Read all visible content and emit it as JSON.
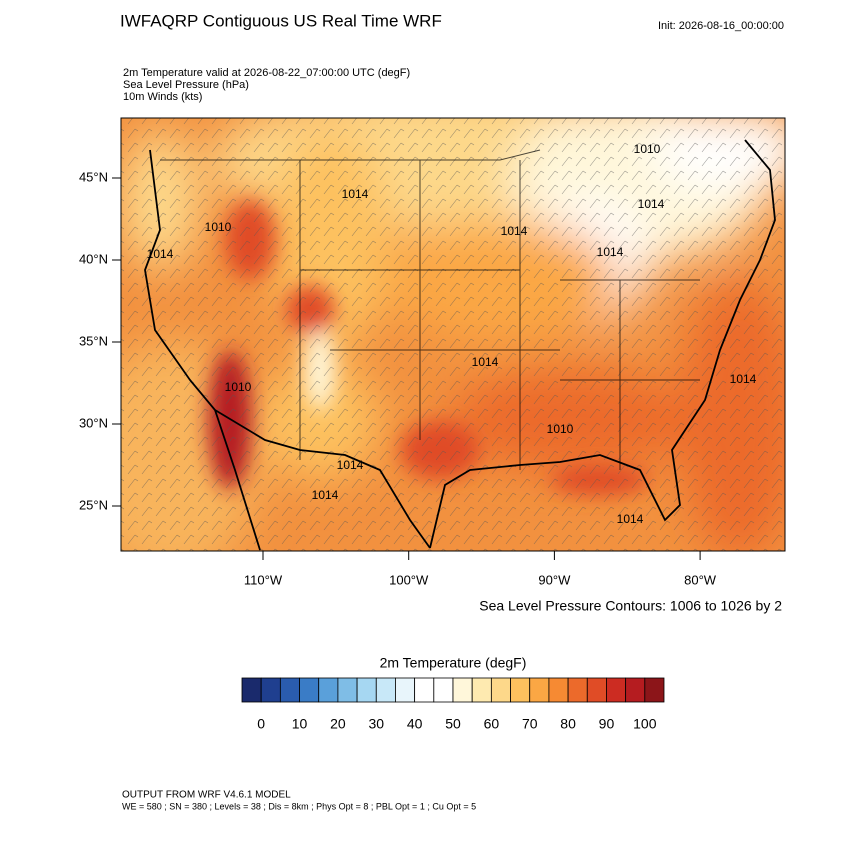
{
  "header": {
    "title": "IWFAQRP Contiguous US Real Time WRF",
    "init": "Init: 2026-08-16_00:00:00",
    "fields": [
      "2m Temperature valid at 2026-08-22_07:00:00 UTC   (degF)",
      "Sea Level Pressure   (hPa)",
      "10m Winds   (kts)"
    ]
  },
  "map": {
    "lat_ticks": [
      {
        "value": 45,
        "label": "45°N"
      },
      {
        "value": 40,
        "label": "40°N"
      },
      {
        "value": 35,
        "label": "35°N"
      },
      {
        "value": 30,
        "label": "30°N"
      },
      {
        "value": 25,
        "label": "25°N"
      }
    ],
    "lon_ticks": [
      {
        "value": -110,
        "label": "110°W"
      },
      {
        "value": -100,
        "label": "100°W"
      },
      {
        "value": -90,
        "label": "90°W"
      },
      {
        "value": -80,
        "label": "80°W"
      }
    ],
    "contour_labels": [
      "1010",
      "1014",
      "1014",
      "1014",
      "1014",
      "1014",
      "1014",
      "1010",
      "1014",
      "1014",
      "1014",
      "1014",
      "1010",
      "1010"
    ],
    "contour_note": "Sea Level Pressure Contours: 1006 to 1026 by 2"
  },
  "colorbar": {
    "title": "2m Temperature  (degF)",
    "labels": [
      0,
      10,
      20,
      30,
      40,
      50,
      60,
      70,
      80,
      90,
      100
    ],
    "colors": [
      "#1a2a6c",
      "#1f3f8f",
      "#2a5cae",
      "#3a7cc6",
      "#5aa0da",
      "#7fbde6",
      "#a6d7f2",
      "#c8e8f8",
      "#e8f5fb",
      "#ffffff",
      "#ffffff",
      "#fff7da",
      "#feeab0",
      "#fdd88a",
      "#fdc15e",
      "#fba744",
      "#f68a33",
      "#ec6a2b",
      "#e04c26",
      "#cc2c22",
      "#b51c20",
      "#8c1519"
    ]
  },
  "footer": {
    "model": "OUTPUT FROM WRF V4.6.1 MODEL",
    "settings": "WE = 580 ; SN = 380 ; Levels = 38 ; Dis = 8km ; Phys Opt = 8 ; PBL Opt = 1 ; Cu Opt = 5"
  }
}
